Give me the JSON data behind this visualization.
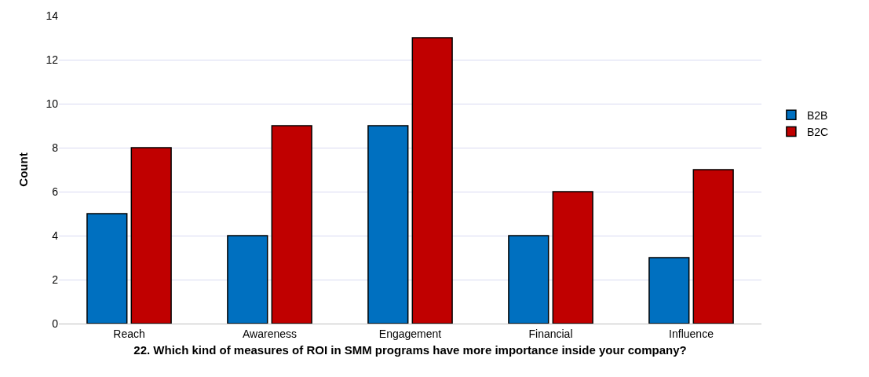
{
  "chart_data": {
    "type": "bar",
    "xlabel": "22. Which kind of measures of ROI in SMM programs have more importance inside your company?",
    "ylabel": "Count",
    "categories": [
      "Reach",
      "Awareness",
      "Engagement",
      "Financial",
      "Influence"
    ],
    "series": [
      {
        "name": "B2B",
        "color": "#0070c0",
        "values": [
          5,
          4,
          9,
          4,
          3
        ]
      },
      {
        "name": "B2C",
        "color": "#c00000",
        "values": [
          8,
          9,
          13,
          6,
          7
        ]
      }
    ],
    "ylim": [
      0,
      14
    ],
    "yticks": [
      0,
      2,
      4,
      6,
      8,
      10,
      12,
      14
    ],
    "grid": "y",
    "legend": "right"
  }
}
